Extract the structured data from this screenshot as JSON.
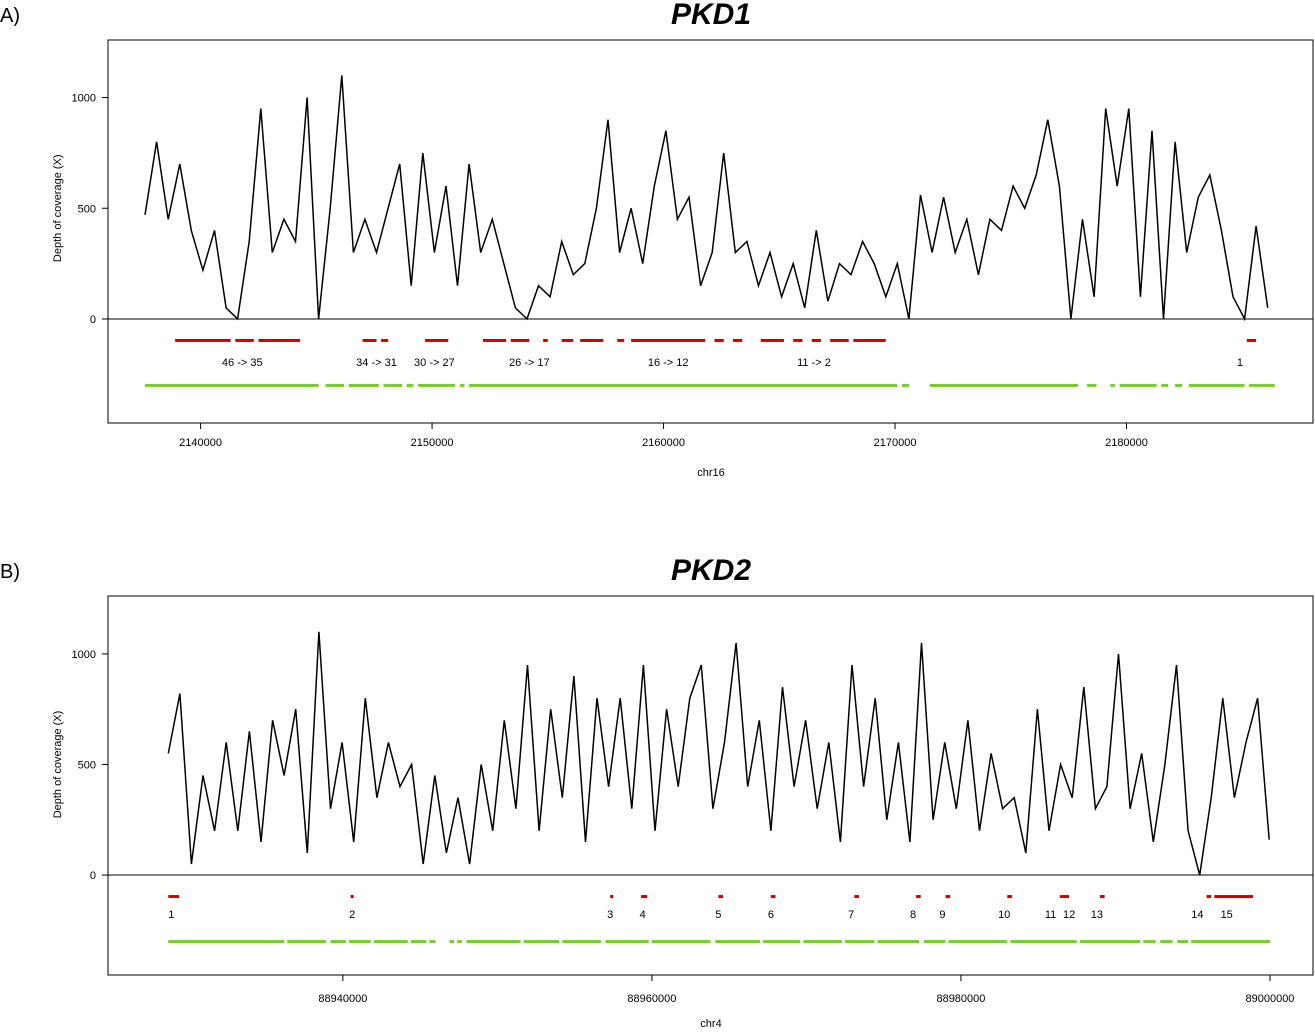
{
  "chart_data": [
    {
      "type": "line",
      "panel": "A)",
      "title": "PKD1",
      "xlabel": "chr16",
      "ylabel": "Depth of coverage (X)",
      "color": "#000000",
      "x": [
        2137600,
        2138100,
        2138600,
        2139100,
        2139600,
        2140100,
        2140600,
        2141100,
        2141600,
        2142100,
        2142600,
        2143100,
        2143600,
        2144100,
        2144600,
        2145100,
        2145600,
        2146100,
        2146600,
        2147100,
        2147600,
        2148100,
        2148600,
        2149100,
        2149600,
        2150100,
        2150600,
        2151100,
        2151600,
        2152100,
        2152600,
        2153100,
        2153600,
        2154100,
        2154600,
        2155100,
        2155600,
        2156100,
        2156600,
        2157100,
        2157600,
        2158100,
        2158600,
        2159100,
        2159600,
        2160100,
        2160600,
        2161100,
        2161600,
        2162100,
        2162600,
        2163100,
        2163600,
        2164100,
        2164600,
        2165100,
        2165600,
        2166100,
        2166600,
        2167100,
        2167600,
        2168100,
        2168600,
        2169100,
        2169600,
        2170100,
        2170600,
        2171100,
        2171600,
        2172100,
        2172600,
        2173100,
        2173600,
        2174100,
        2174600,
        2175100,
        2175600,
        2176100,
        2176600,
        2177100,
        2177600,
        2178100,
        2178600,
        2179100,
        2179600,
        2180100,
        2180600,
        2181100,
        2181600,
        2182100,
        2182600,
        2183100,
        2183600,
        2184100,
        2184600,
        2185100,
        2185600,
        2186100
      ],
      "values": [
        470,
        800,
        450,
        700,
        400,
        220,
        400,
        50,
        0,
        350,
        950,
        300,
        450,
        350,
        1000,
        0,
        500,
        1100,
        300,
        450,
        300,
        500,
        700,
        150,
        750,
        300,
        600,
        150,
        700,
        300,
        450,
        250,
        50,
        0,
        150,
        100,
        350,
        200,
        250,
        500,
        900,
        300,
        500,
        250,
        600,
        850,
        450,
        550,
        150,
        300,
        750,
        300,
        350,
        150,
        300,
        100,
        250,
        50,
        400,
        80,
        250,
        200,
        350,
        250,
        100,
        250,
        0,
        560,
        300,
        550,
        300,
        450,
        200,
        450,
        400,
        600,
        500,
        650,
        900,
        600,
        0,
        450,
        100,
        950,
        600,
        950,
        100,
        850,
        0,
        800,
        300,
        550,
        650,
        400,
        100,
        0,
        420,
        50
      ],
      "xlim": [
        2136000,
        2188100
      ],
      "xticks": [
        2140000,
        2150000,
        2160000,
        2170000,
        2180000
      ],
      "ylim": [
        -470,
        1260
      ],
      "yticks": [
        0,
        500,
        1000
      ],
      "exon_color": "#cc0000",
      "amplicon_color": "#77cc33",
      "exons": [
        [
          2138900,
          2141300
        ],
        [
          2141500,
          2142300
        ],
        [
          2142500,
          2144300
        ],
        [
          2147000,
          2147600
        ],
        [
          2147800,
          2148100
        ],
        [
          2149700,
          2150700
        ],
        [
          2152200,
          2153200
        ],
        [
          2153400,
          2154200
        ],
        [
          2154800,
          2155000
        ],
        [
          2155600,
          2156100
        ],
        [
          2156400,
          2157400
        ],
        [
          2158000,
          2158300
        ],
        [
          2158600,
          2161800
        ],
        [
          2162200,
          2162600
        ],
        [
          2163000,
          2163400
        ],
        [
          2164200,
          2165200
        ],
        [
          2165600,
          2166000
        ],
        [
          2166400,
          2166800
        ],
        [
          2167200,
          2168000
        ],
        [
          2168200,
          2169600
        ],
        [
          2185200,
          2185600
        ]
      ],
      "exon_labels": [
        {
          "text": "46 -> 35",
          "x": 2141800
        },
        {
          "text": "34 -> 31",
          "x": 2147600
        },
        {
          "text": "30 -> 27",
          "x": 2150100
        },
        {
          "text": "26 -> 17",
          "x": 2154200
        },
        {
          "text": "16 -> 12",
          "x": 2160200
        },
        {
          "text": "11 -> 2",
          "x": 2166500
        },
        {
          "text": "1",
          "x": 2184900
        }
      ],
      "amplicons": [
        [
          2137600,
          2145100
        ],
        [
          2145400,
          2146200
        ],
        [
          2146400,
          2147700
        ],
        [
          2147900,
          2148700
        ],
        [
          2148900,
          2149200
        ],
        [
          2149400,
          2151000
        ],
        [
          2151200,
          2151400
        ],
        [
          2151600,
          2170100
        ],
        [
          2170300,
          2170600
        ],
        [
          2171500,
          2177900
        ],
        [
          2178300,
          2178700
        ],
        [
          2179300,
          2179500
        ],
        [
          2179700,
          2181300
        ],
        [
          2181500,
          2181800
        ],
        [
          2182100,
          2182400
        ],
        [
          2182700,
          2185100
        ],
        [
          2185300,
          2186400
        ]
      ]
    },
    {
      "type": "line",
      "panel": "B)",
      "title": "PKD2",
      "xlabel": "chr4",
      "ylabel": "Depth of coverage (X)",
      "color": "#000000",
      "x": [
        88928700,
        88929450,
        88930200,
        88930950,
        88931700,
        88932450,
        88933200,
        88933950,
        88934700,
        88935450,
        88936200,
        88936950,
        88937700,
        88938450,
        88939200,
        88939950,
        88940700,
        88941450,
        88942200,
        88942950,
        88943700,
        88944450,
        88945200,
        88945950,
        88946700,
        88947450,
        88948200,
        88948950,
        88949700,
        88950450,
        88951200,
        88951950,
        88952700,
        88953450,
        88954200,
        88954950,
        88955700,
        88956450,
        88957200,
        88957950,
        88958700,
        88959450,
        88960200,
        88960950,
        88961700,
        88962450,
        88963200,
        88963950,
        88964700,
        88965450,
        88966200,
        88966950,
        88967700,
        88968450,
        88969200,
        88969950,
        88970700,
        88971450,
        88972200,
        88972950,
        88973700,
        88974450,
        88975200,
        88975950,
        88976700,
        88977450,
        88978200,
        88978950,
        88979700,
        88980450,
        88981200,
        88981950,
        88982700,
        88983450,
        88984200,
        88984950,
        88985700,
        88986450,
        88987200,
        88987950,
        88988700,
        88989450,
        88990200,
        88990950,
        88991700,
        88992450,
        88993200,
        88993950,
        88994700,
        88995450,
        88996200,
        88996950,
        88997700,
        88998450,
        88999200,
        88999950
      ],
      "values": [
        550,
        820,
        50,
        450,
        200,
        600,
        200,
        650,
        150,
        700,
        450,
        750,
        100,
        1100,
        300,
        600,
        150,
        800,
        350,
        600,
        400,
        500,
        50,
        450,
        100,
        350,
        50,
        500,
        200,
        700,
        300,
        950,
        200,
        750,
        350,
        900,
        150,
        800,
        400,
        800,
        300,
        950,
        200,
        750,
        400,
        800,
        950,
        300,
        600,
        1050,
        400,
        700,
        200,
        850,
        400,
        700,
        300,
        600,
        150,
        950,
        400,
        800,
        250,
        600,
        150,
        1050,
        250,
        600,
        300,
        700,
        200,
        550,
        300,
        350,
        100,
        750,
        200,
        500,
        350,
        850,
        300,
        400,
        1000,
        300,
        550,
        150,
        500,
        950,
        200,
        0,
        350,
        800,
        350,
        600,
        800,
        160
      ],
      "xlim": [
        88924800,
        89002850
      ],
      "xticks": [
        88940000,
        88960000,
        88980000,
        89000000
      ],
      "ylim": [
        -452,
        1262
      ],
      "yticks": [
        0,
        500,
        1000
      ],
      "exon_color": "#cc0000",
      "amplicon_color": "#77cc33",
      "exons": [
        [
          88928700,
          88929400
        ],
        [
          88940500,
          88940700
        ],
        [
          88957300,
          88957500
        ],
        [
          88959300,
          88959700
        ],
        [
          88964300,
          88964600
        ],
        [
          88967700,
          88968000
        ],
        [
          88973100,
          88973400
        ],
        [
          88977100,
          88977400
        ],
        [
          88979000,
          88979300
        ],
        [
          88983000,
          88983300
        ],
        [
          88986400,
          88987000
        ],
        [
          88989000,
          88989300
        ],
        [
          88995900,
          88996200
        ],
        [
          88996400,
          88998900
        ]
      ],
      "exon_labels": [
        {
          "text": "1",
          "x": 88928900
        },
        {
          "text": "2",
          "x": 88940600
        },
        {
          "text": "3",
          "x": 88957300
        },
        {
          "text": "4",
          "x": 88959400
        },
        {
          "text": "5",
          "x": 88964300
        },
        {
          "text": "6",
          "x": 88967700
        },
        {
          "text": "7",
          "x": 88972900
        },
        {
          "text": "8",
          "x": 88976900
        },
        {
          "text": "9",
          "x": 88978800
        },
        {
          "text": "10",
          "x": 88982800
        },
        {
          "text": "11",
          "x": 88985800
        },
        {
          "text": "12",
          "x": 88987000
        },
        {
          "text": "13",
          "x": 88988800
        },
        {
          "text": "14",
          "x": 88995300
        },
        {
          "text": "15",
          "x": 88997200
        }
      ],
      "amplicons": [
        [
          88928700,
          88936200
        ],
        [
          88936400,
          88938900
        ],
        [
          88939200,
          88940200
        ],
        [
          88940400,
          88941800
        ],
        [
          88942000,
          88944200
        ],
        [
          88944400,
          88945400
        ],
        [
          88945600,
          88946000
        ],
        [
          88946900,
          88947200
        ],
        [
          88947400,
          88947700
        ],
        [
          88948000,
          88951500
        ],
        [
          88951700,
          88954000
        ],
        [
          88954200,
          88956700
        ],
        [
          88957000,
          88959800
        ],
        [
          88960000,
          88963800
        ],
        [
          88964100,
          88967000
        ],
        [
          88967200,
          88969600
        ],
        [
          88969800,
          88972300
        ],
        [
          88972500,
          88974400
        ],
        [
          88974600,
          88977300
        ],
        [
          88977600,
          88979000
        ],
        [
          88979200,
          88983000
        ],
        [
          88983200,
          88987500
        ],
        [
          88987700,
          88991600
        ],
        [
          88991800,
          88992600
        ],
        [
          88992900,
          88993700
        ],
        [
          88994000,
          88994700
        ],
        [
          88994900,
          89000000
        ]
      ]
    }
  ]
}
